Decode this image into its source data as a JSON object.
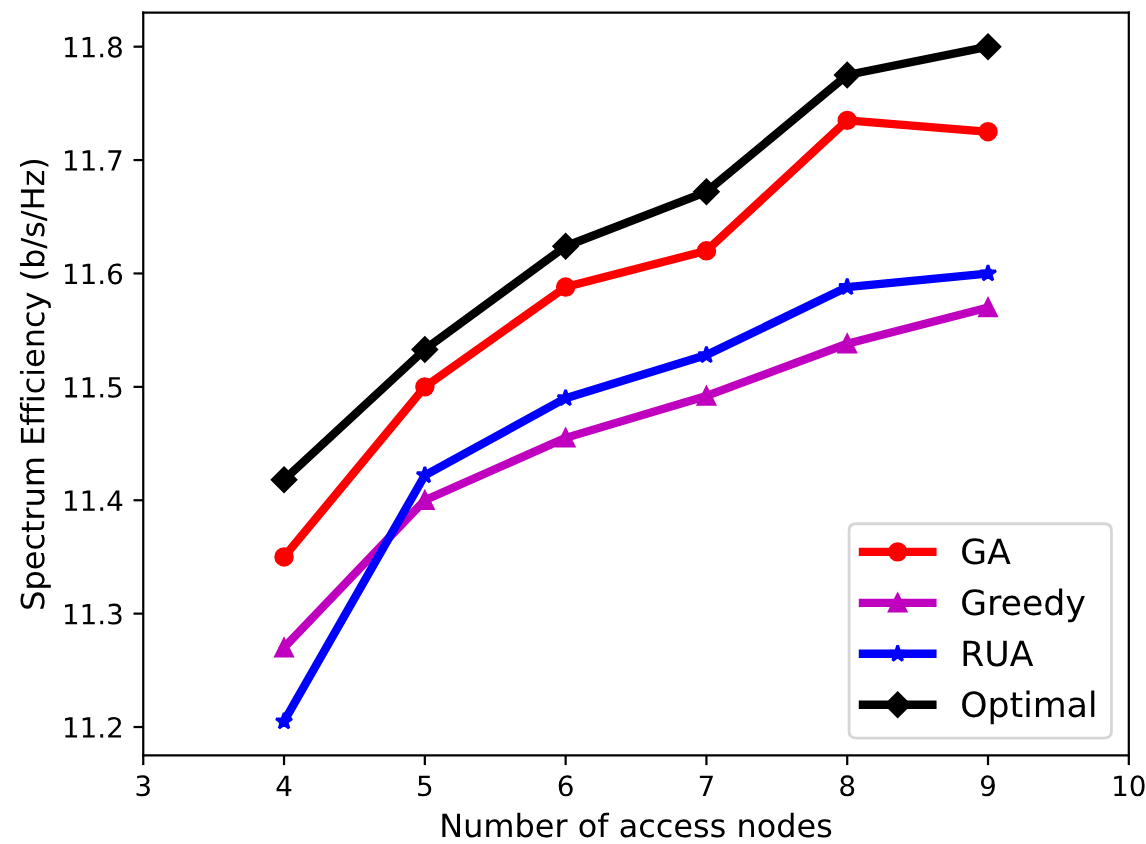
{
  "chart_data": {
    "type": "line",
    "xlabel": "Number of access nodes",
    "ylabel": "Spectrum Efficiency (b/s/Hz)",
    "x": [
      4,
      5,
      6,
      7,
      8,
      9
    ],
    "series": [
      {
        "name": "GA",
        "color": "#ff0000",
        "marker": "circle",
        "values": [
          11.35,
          11.5,
          11.588,
          11.62,
          11.735,
          11.725
        ]
      },
      {
        "name": "Greedy",
        "color": "#bf00bf",
        "marker": "triangle",
        "values": [
          11.27,
          11.4,
          11.455,
          11.492,
          11.538,
          11.57
        ]
      },
      {
        "name": "RUA",
        "color": "#0000ff",
        "marker": "star",
        "values": [
          11.205,
          11.422,
          11.49,
          11.528,
          11.588,
          11.6
        ]
      },
      {
        "name": "Optimal",
        "color": "#000000",
        "marker": "diamond",
        "values": [
          11.418,
          11.533,
          11.624,
          11.672,
          11.775,
          11.8
        ]
      }
    ],
    "xlim": [
      3,
      10
    ],
    "xticks": [
      3,
      4,
      5,
      6,
      7,
      8,
      9,
      10
    ],
    "ylim": [
      11.175,
      11.83
    ],
    "yticks": [
      11.2,
      11.3,
      11.4,
      11.5,
      11.6,
      11.7,
      11.8
    ],
    "legend": "bottom right",
    "grid": false,
    "line_style": "solid"
  }
}
